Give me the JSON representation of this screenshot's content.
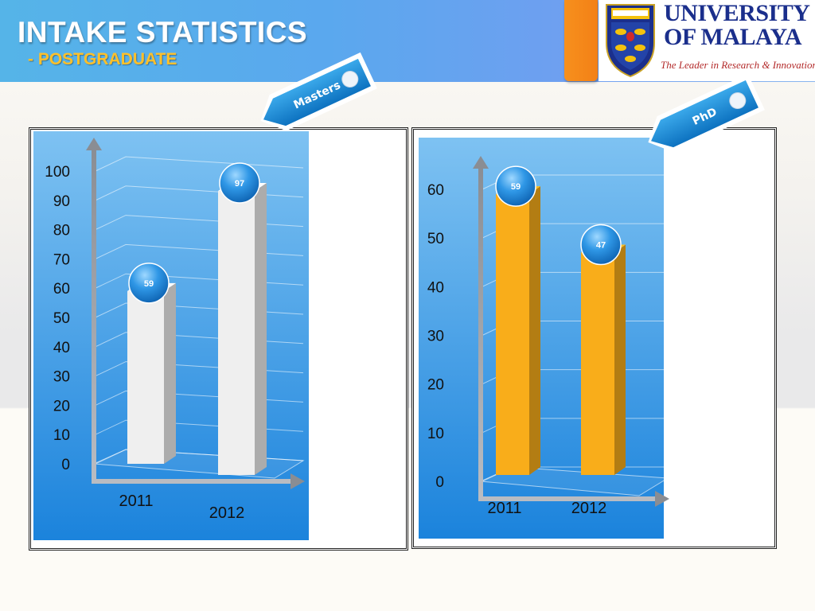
{
  "header": {
    "title": "INTAKE STATISTICS",
    "subtitle": "- POSTGRADUATE"
  },
  "logo": {
    "line1": "UNIVERSITY",
    "line2": "OF MALAYA",
    "tagline": "The Leader in Research & Innovation"
  },
  "colors": {
    "header": "#5aa8ee",
    "plot_bg": "#2b8fe0",
    "masters_bar": "#efefef",
    "phd_bar": "#f9ad1a",
    "ribbon": "#1c8fd8",
    "orange_tab": "#f38016"
  },
  "chart_data": [
    {
      "type": "bar",
      "ribbon_label": "Masters",
      "categories": [
        "2011",
        "2012"
      ],
      "values": [
        59,
        97
      ],
      "data_labels": [
        "59",
        "97"
      ],
      "yticks": [
        "0",
        "10",
        "20",
        "30",
        "40",
        "50",
        "60",
        "70",
        "80",
        "90",
        "100"
      ],
      "ylim": [
        0,
        100
      ],
      "grid": true,
      "style": "3d-column"
    },
    {
      "type": "bar",
      "ribbon_label": "PhD",
      "categories": [
        "2011",
        "2012"
      ],
      "values": [
        59,
        47
      ],
      "data_labels": [
        "59",
        "47"
      ],
      "yticks": [
        "0",
        "10",
        "20",
        "30",
        "40",
        "50",
        "60"
      ],
      "ylim": [
        0,
        60
      ],
      "grid": true,
      "style": "3d-column"
    }
  ]
}
